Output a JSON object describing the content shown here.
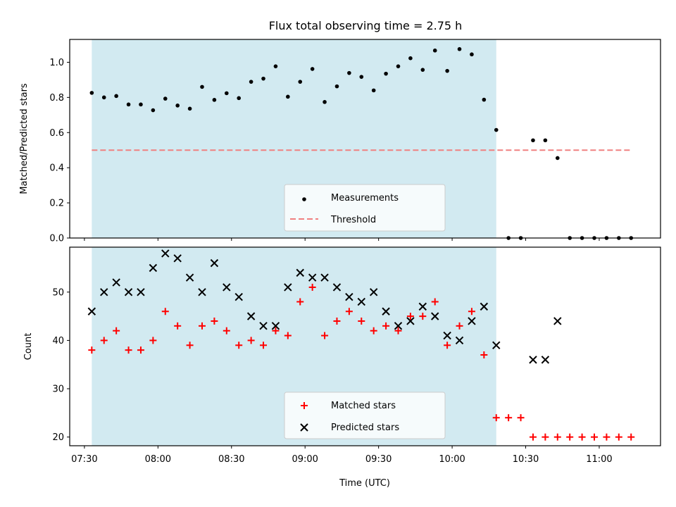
{
  "chart_data": {
    "title": "Flux total observing time = 2.75 h",
    "observing_window": {
      "start": "07:33",
      "end": "10:18",
      "color": "#add8e6"
    },
    "xlabel": "Time (UTC)",
    "xticks": [
      "07:30",
      "08:00",
      "08:30",
      "09:00",
      "09:30",
      "10:00",
      "10:30",
      "11:00"
    ],
    "xlim": [
      "07:24",
      "11:25"
    ],
    "panels": [
      {
        "type": "scatter",
        "ylabel": "Matched/Predicted stars",
        "ylim": [
          0,
          1.13
        ],
        "yticks": [
          "0.0",
          "0.2",
          "0.4",
          "0.6",
          "0.8",
          "1.0"
        ],
        "legend_position": "lower-center",
        "series": [
          {
            "name": "Measurements",
            "marker": "dot",
            "color": "#000000",
            "points": [
              [
                "07:33",
                0.826
              ],
              [
                "07:38",
                0.8
              ],
              [
                "07:43",
                0.808
              ],
              [
                "07:48",
                0.76
              ],
              [
                "07:53",
                0.76
              ],
              [
                "07:58",
                0.727
              ],
              [
                "08:03",
                0.793
              ],
              [
                "08:08",
                0.754
              ],
              [
                "08:13",
                0.736
              ],
              [
                "08:18",
                0.86
              ],
              [
                "08:23",
                0.786
              ],
              [
                "08:28",
                0.824
              ],
              [
                "08:33",
                0.796
              ],
              [
                "08:38",
                0.889
              ],
              [
                "08:43",
                0.907
              ],
              [
                "08:48",
                0.977
              ],
              [
                "08:53",
                0.804
              ],
              [
                "08:58",
                0.889
              ],
              [
                "09:03",
                0.962
              ],
              [
                "09:08",
                0.774
              ],
              [
                "09:13",
                0.863
              ],
              [
                "09:18",
                0.939
              ],
              [
                "09:23",
                0.917
              ],
              [
                "09:28",
                0.84
              ],
              [
                "09:33",
                0.935
              ],
              [
                "09:38",
                0.977
              ],
              [
                "09:43",
                1.023
              ],
              [
                "09:48",
                0.957
              ],
              [
                "09:53",
                1.067
              ],
              [
                "09:58",
                0.951
              ],
              [
                "10:03",
                1.075
              ],
              [
                "10:08",
                1.045
              ],
              [
                "10:13",
                0.787
              ],
              [
                "10:18",
                0.615
              ],
              [
                "10:23",
                0.0
              ],
              [
                "10:28",
                0.0
              ],
              [
                "10:33",
                0.556
              ],
              [
                "10:38",
                0.556
              ],
              [
                "10:43",
                0.455
              ],
              [
                "10:48",
                0.0
              ],
              [
                "10:53",
                0.0
              ],
              [
                "10:58",
                0.0
              ],
              [
                "11:03",
                0.0
              ],
              [
                "11:08",
                0.0
              ],
              [
                "11:13",
                0.0
              ]
            ]
          },
          {
            "name": "Threshold",
            "style": "dashed-line",
            "color": "#f08080",
            "points": [
              [
                "07:33",
                0.5
              ],
              [
                "11:13",
                0.5
              ]
            ]
          }
        ]
      },
      {
        "type": "scatter",
        "ylabel": "Count",
        "ylim": [
          18.2,
          59.3
        ],
        "yticks": [
          "20",
          "30",
          "40",
          "50"
        ],
        "legend_position": "lower-center",
        "series": [
          {
            "name": "Matched stars",
            "marker": "plus",
            "color": "#ff0000",
            "points": [
              [
                "07:33",
                38
              ],
              [
                "07:38",
                40
              ],
              [
                "07:43",
                42
              ],
              [
                "07:48",
                38
              ],
              [
                "07:53",
                38
              ],
              [
                "07:58",
                40
              ],
              [
                "08:03",
                46
              ],
              [
                "08:08",
                43
              ],
              [
                "08:13",
                39
              ],
              [
                "08:18",
                43
              ],
              [
                "08:23",
                44
              ],
              [
                "08:28",
                42
              ],
              [
                "08:33",
                39
              ],
              [
                "08:38",
                40
              ],
              [
                "08:43",
                39
              ],
              [
                "08:48",
                42
              ],
              [
                "08:53",
                41
              ],
              [
                "08:58",
                48
              ],
              [
                "09:03",
                51
              ],
              [
                "09:08",
                41
              ],
              [
                "09:13",
                44
              ],
              [
                "09:18",
                46
              ],
              [
                "09:23",
                44
              ],
              [
                "09:28",
                42
              ],
              [
                "09:33",
                43
              ],
              [
                "09:38",
                42
              ],
              [
                "09:43",
                45
              ],
              [
                "09:48",
                45
              ],
              [
                "09:53",
                48
              ],
              [
                "09:58",
                39
              ],
              [
                "10:03",
                43
              ],
              [
                "10:08",
                46
              ],
              [
                "10:13",
                37
              ],
              [
                "10:18",
                24
              ],
              [
                "10:23",
                24
              ],
              [
                "10:28",
                24
              ],
              [
                "10:33",
                20
              ],
              [
                "10:38",
                20
              ],
              [
                "10:43",
                20
              ],
              [
                "10:48",
                20
              ],
              [
                "10:53",
                20
              ],
              [
                "10:58",
                20
              ],
              [
                "11:03",
                20
              ],
              [
                "11:08",
                20
              ],
              [
                "11:13",
                20
              ]
            ]
          },
          {
            "name": "Predicted stars",
            "marker": "x",
            "color": "#000000",
            "points": [
              [
                "07:33",
                46
              ],
              [
                "07:38",
                50
              ],
              [
                "07:43",
                52
              ],
              [
                "07:48",
                50
              ],
              [
                "07:53",
                50
              ],
              [
                "07:58",
                55
              ],
              [
                "08:03",
                58
              ],
              [
                "08:08",
                57
              ],
              [
                "08:13",
                53
              ],
              [
                "08:18",
                50
              ],
              [
                "08:23",
                56
              ],
              [
                "08:28",
                51
              ],
              [
                "08:33",
                49
              ],
              [
                "08:38",
                45
              ],
              [
                "08:43",
                43
              ],
              [
                "08:48",
                43
              ],
              [
                "08:53",
                51
              ],
              [
                "08:58",
                54
              ],
              [
                "09:03",
                53
              ],
              [
                "09:08",
                53
              ],
              [
                "09:13",
                51
              ],
              [
                "09:18",
                49
              ],
              [
                "09:23",
                48
              ],
              [
                "09:28",
                50
              ],
              [
                "09:33",
                46
              ],
              [
                "09:38",
                43
              ],
              [
                "09:43",
                44
              ],
              [
                "09:48",
                47
              ],
              [
                "09:53",
                45
              ],
              [
                "09:58",
                41
              ],
              [
                "10:03",
                40
              ],
              [
                "10:08",
                44
              ],
              [
                "10:13",
                47
              ],
              [
                "10:18",
                39
              ],
              [
                "10:33",
                36
              ],
              [
                "10:38",
                36
              ],
              [
                "10:43",
                44
              ]
            ]
          }
        ]
      }
    ]
  }
}
